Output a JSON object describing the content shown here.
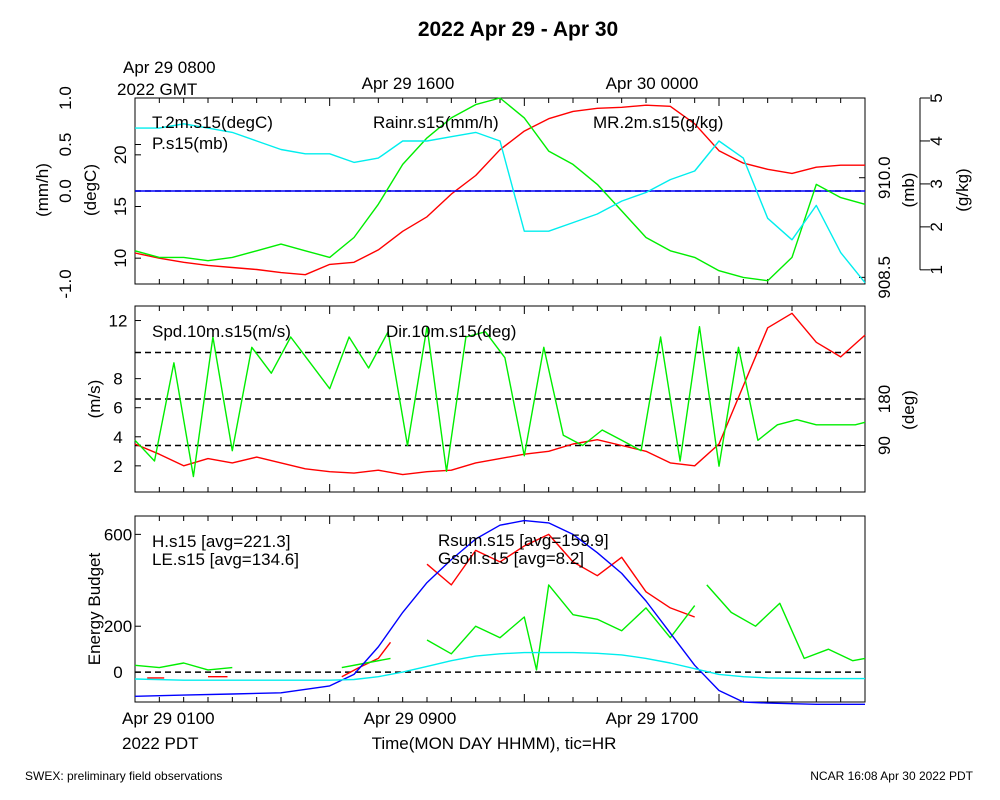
{
  "title": "2022 Apr 29 - Apr 30",
  "top_time_labels": {
    "first_line1": "Apr 29 0800",
    "first_line2": "2022 GMT",
    "second": "Apr 29 1600",
    "third": "Apr 30 0000"
  },
  "bottom_time_labels": {
    "first_line1": "Apr 29 0100",
    "first_line2": "2022 PDT",
    "second": "Apr 29 0900",
    "third": "Apr 29 1700"
  },
  "xlabel": "Time(MON DAY HHMM), tic=HR",
  "footer_left": "SWEX: preliminary field observations",
  "footer_right": "NCAR 16:08 Apr 30 2022 PDT",
  "colors": {
    "red": "#ff0000",
    "green": "#00ee00",
    "blue": "#0000ff",
    "cyan": "#00eeee"
  },
  "chart_data": [
    {
      "type": "line",
      "panel": "top",
      "x_unit": "hours since Apr 29 0100 PDT",
      "xlim": [
        0,
        30
      ],
      "axes": {
        "left_outer": {
          "label": "(mm/h)",
          "lim": [
            -1.0,
            1.0
          ],
          "ticks": [
            "-1.0",
            "0.0",
            "0.5",
            "1.0"
          ],
          "tick_values": [
            -1.0,
            0.0,
            0.5,
            1.0
          ]
        },
        "left_inner": {
          "label": "(degC)",
          "lim": [
            7.5,
            25.5
          ],
          "ticks": [
            "10",
            "15",
            "20"
          ],
          "tick_values": [
            10,
            15,
            20
          ]
        },
        "right_inner": {
          "label": "(mb)",
          "lim": [
            908.4,
            911.2
          ],
          "ticks": [
            "908.5",
            "910.0"
          ],
          "tick_values": [
            908.5,
            910.0
          ]
        },
        "right_outer": {
          "label": "(g/kg)",
          "lim": [
            0.67,
            5.0
          ],
          "ticks": [
            "1",
            "2",
            "3",
            "4",
            "5"
          ],
          "tick_values": [
            1,
            2,
            3,
            4,
            5
          ]
        }
      },
      "reference_line": {
        "axis": "left_outer",
        "value": 0.0,
        "style": "dashed"
      },
      "series": [
        {
          "name": "T.2m.s15(degC)",
          "color": "red",
          "axis": "left_inner",
          "x": [
            0,
            1,
            2,
            3,
            4,
            5,
            6,
            7,
            8,
            9,
            10,
            11,
            12,
            13,
            14,
            15,
            16,
            17,
            18,
            19,
            20,
            21,
            22,
            23,
            24,
            25,
            26,
            27,
            28,
            29,
            30
          ],
          "y": [
            10.5,
            10.0,
            9.6,
            9.3,
            9.1,
            8.9,
            8.6,
            8.4,
            9.4,
            9.6,
            10.8,
            12.6,
            14.0,
            16.2,
            18.0,
            20.5,
            22.3,
            23.5,
            24.2,
            24.5,
            24.6,
            24.8,
            24.7,
            23.0,
            20.4,
            19.2,
            18.6,
            18.2,
            18.8,
            19.0,
            19.0
          ]
        },
        {
          "name": "Rainr.s15(mm/h)",
          "color": "blue",
          "axis": "left_outer",
          "x": [
            0,
            30
          ],
          "y": [
            0.0,
            0.0
          ]
        },
        {
          "name": "P.s15(mb)",
          "color": "green",
          "axis": "right_inner",
          "x": [
            0,
            1,
            2,
            3,
            4,
            5,
            6,
            7,
            8,
            9,
            10,
            11,
            12,
            13,
            14,
            15,
            16,
            17,
            18,
            19,
            20,
            21,
            22,
            23,
            24,
            25,
            26,
            27,
            28,
            29,
            30
          ],
          "y": [
            908.9,
            908.8,
            908.8,
            908.75,
            908.8,
            908.9,
            909.0,
            908.9,
            908.8,
            909.1,
            909.6,
            910.2,
            910.6,
            910.9,
            911.1,
            911.2,
            910.9,
            910.4,
            910.2,
            909.9,
            909.5,
            909.1,
            908.9,
            908.8,
            908.6,
            908.5,
            908.45,
            908.8,
            909.9,
            909.7,
            909.6
          ]
        },
        {
          "name": "MR.2m.s15(g/kg)",
          "color": "cyan",
          "axis": "right_outer",
          "x": [
            0,
            1,
            2,
            3,
            4,
            5,
            6,
            7,
            8,
            9,
            10,
            11,
            12,
            13,
            14,
            15,
            16,
            17,
            18,
            19,
            20,
            21,
            22,
            23,
            24,
            25,
            26,
            27,
            28,
            29,
            30
          ],
          "y": [
            4.3,
            4.3,
            4.4,
            4.3,
            4.2,
            4.0,
            3.8,
            3.7,
            3.7,
            3.5,
            3.6,
            4.0,
            4.0,
            4.1,
            4.2,
            4.0,
            1.9,
            1.9,
            2.1,
            2.3,
            2.6,
            2.8,
            3.1,
            3.3,
            4.0,
            3.6,
            2.2,
            1.7,
            2.5,
            1.4,
            0.7
          ]
        }
      ]
    },
    {
      "type": "line",
      "panel": "middle",
      "x_unit": "hours since Apr 29 0100 PDT",
      "xlim": [
        0,
        30
      ],
      "axes": {
        "left": {
          "label": "(m/s)",
          "lim": [
            0.2,
            13.0
          ],
          "ticks": [
            "2",
            "4",
            "6",
            "8",
            "12"
          ],
          "tick_values": [
            2,
            4,
            6,
            8,
            12
          ]
        },
        "right": {
          "label": "(deg)",
          "lim": [
            0,
            360
          ],
          "ticks": [
            "90",
            "180"
          ],
          "tick_values": [
            90,
            180
          ]
        }
      },
      "reference_lines": [
        {
          "axis": "right",
          "value": 90,
          "style": "dashed"
        },
        {
          "axis": "right",
          "value": 180,
          "style": "dashed"
        },
        {
          "axis": "right",
          "value": 270,
          "style": "dashed"
        }
      ],
      "series": [
        {
          "name": "Spd.10m.s15(m/s)",
          "color": "red",
          "axis": "left",
          "x": [
            0,
            1,
            2,
            3,
            4,
            5,
            6,
            7,
            8,
            9,
            10,
            11,
            12,
            13,
            14,
            15,
            16,
            17,
            18,
            19,
            20,
            21,
            22,
            23,
            24,
            25,
            26,
            27,
            28,
            29,
            30
          ],
          "y": [
            3.5,
            2.8,
            2.0,
            2.5,
            2.2,
            2.6,
            2.2,
            1.8,
            1.6,
            1.5,
            1.7,
            1.4,
            1.6,
            1.7,
            2.2,
            2.5,
            2.8,
            3.0,
            3.5,
            3.8,
            3.4,
            3.0,
            2.2,
            2.0,
            3.5,
            7.5,
            11.5,
            12.5,
            10.5,
            9.5,
            11.0
          ]
        },
        {
          "name": "Dir.10m.s15(deg)",
          "color": "green",
          "axis": "right",
          "x": [
            0,
            0.8,
            1.6,
            2.4,
            3.2,
            4.0,
            4.8,
            5.6,
            6.4,
            7.2,
            8.0,
            8.8,
            9.6,
            10.4,
            11.2,
            12.0,
            12.8,
            13.6,
            14.4,
            15.2,
            16.0,
            16.8,
            17.6,
            18.4,
            19.2,
            20.0,
            20.8,
            21.6,
            22.4,
            23.2,
            24.0,
            24.8,
            25.6,
            26.4,
            27.2,
            28.0,
            28.8,
            29.6,
            30.0
          ],
          "y": [
            100,
            60,
            250,
            30,
            300,
            80,
            280,
            230,
            300,
            250,
            200,
            300,
            240,
            310,
            90,
            320,
            40,
            300,
            310,
            260,
            70,
            280,
            110,
            90,
            120,
            100,
            80,
            300,
            60,
            320,
            50,
            280,
            100,
            130,
            140,
            130,
            130,
            130,
            135
          ]
        }
      ]
    },
    {
      "type": "line",
      "panel": "bottom",
      "x_unit": "hours since Apr 29 0100 PDT",
      "xlim": [
        0,
        30
      ],
      "ylabel": "Energy Budget",
      "ylim": [
        -130,
        680
      ],
      "yticks": [
        "0",
        "200",
        "600"
      ],
      "ytick_values": [
        0,
        200,
        600
      ],
      "reference_line": {
        "value": 0,
        "style": "dashed"
      },
      "series": [
        {
          "name": "H.s15 [avg=221.3]",
          "color": "red",
          "segments": [
            {
              "x": [
                0.5,
                1.2
              ],
              "y": [
                -25,
                -25
              ]
            },
            {
              "x": [
                3.0,
                3.8
              ],
              "y": [
                -20,
                -20
              ]
            },
            {
              "x": [
                8.5,
                9.2,
                10.0,
                10.5
              ],
              "y": [
                -20,
                20,
                60,
                130
              ]
            },
            {
              "x": [
                12.0,
                13.0,
                14.0,
                15.0,
                16.0,
                17.0,
                18.0,
                19.0,
                20.0,
                21.0,
                22.0,
                23.0
              ],
              "y": [
                470,
                380,
                530,
                480,
                550,
                600,
                480,
                420,
                500,
                350,
                280,
                240
              ]
            }
          ]
        },
        {
          "name": "LE.s15 [avg=134.6]",
          "color": "green",
          "segments": [
            {
              "x": [
                0,
                1,
                2,
                3,
                4
              ],
              "y": [
                30,
                20,
                40,
                10,
                20
              ]
            },
            {
              "x": [
                8.5,
                9.5,
                10.5
              ],
              "y": [
                20,
                40,
                60
              ]
            },
            {
              "x": [
                12.0,
                13.0,
                14.0,
                15.0,
                16.0,
                16.5,
                17.0,
                18.0,
                19.0,
                20.0,
                21.0,
                22.0,
                23.0
              ],
              "y": [
                140,
                80,
                200,
                150,
                240,
                10,
                380,
                250,
                230,
                180,
                280,
                150,
                290
              ]
            },
            {
              "x": [
                23.5,
                24.5,
                25.5,
                26.5,
                27.5,
                28.5,
                29.5,
                30.0
              ],
              "y": [
                380,
                260,
                200,
                300,
                60,
                100,
                50,
                60
              ]
            }
          ]
        },
        {
          "name": "Rsum.s15 [avg=159.9]",
          "color": "blue",
          "x": [
            0,
            2,
            4,
            6,
            8,
            9,
            10,
            11,
            12,
            13,
            14,
            15,
            16,
            17,
            18,
            19,
            20,
            21,
            22,
            23,
            24,
            25,
            26,
            28,
            30
          ],
          "y": [
            -105,
            -100,
            -95,
            -90,
            -60,
            -10,
            110,
            260,
            390,
            490,
            580,
            640,
            660,
            650,
            600,
            520,
            430,
            310,
            170,
            30,
            -80,
            -130,
            -135,
            -140,
            -140
          ]
        },
        {
          "name": "Gsoil.s15 [avg=8.2]",
          "color": "cyan",
          "x": [
            0,
            2,
            4,
            6,
            8,
            9,
            10,
            11,
            12,
            13,
            14,
            15,
            16,
            17,
            18,
            19,
            20,
            21,
            22,
            23,
            24,
            25,
            26,
            28,
            30
          ],
          "y": [
            -30,
            -35,
            -35,
            -35,
            -35,
            -32,
            -20,
            0,
            25,
            50,
            70,
            80,
            85,
            85,
            85,
            82,
            75,
            60,
            40,
            15,
            -10,
            -20,
            -25,
            -28,
            -28
          ]
        }
      ]
    }
  ]
}
